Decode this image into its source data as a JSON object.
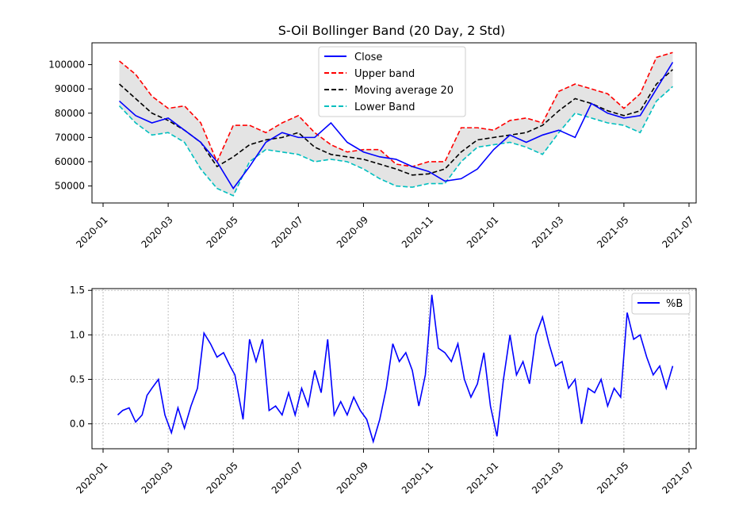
{
  "chart_data": [
    {
      "type": "line",
      "title": "S-Oil Bollinger Band (20 Day, 2 Std)",
      "xlabel": "",
      "ylabel": "",
      "x_ticks": [
        "2020-01",
        "2020-03",
        "2020-05",
        "2020-07",
        "2020-09",
        "2020-11",
        "2021-01",
        "2021-03",
        "2021-05",
        "2021-07"
      ],
      "y_ticks": [
        50000,
        60000,
        70000,
        80000,
        90000,
        100000
      ],
      "y_tick_labels": [
        "50000",
        "60000",
        "70000",
        "80000",
        "90000",
        "100000"
      ],
      "ylim": [
        43000,
        109000
      ],
      "grid": false,
      "legend_position": "top-center",
      "band_fill": "#d9d9d9",
      "x_month_index": [
        0.5,
        1,
        1.5,
        2,
        2.5,
        3,
        3.5,
        4,
        4.5,
        5,
        5.5,
        6,
        6.5,
        7,
        7.5,
        8,
        8.5,
        9,
        9.5,
        10,
        10.5,
        11,
        11.5,
        12,
        12.5,
        13,
        13.5,
        14,
        14.5,
        15,
        15.5,
        16,
        16.5,
        17,
        17.5
      ],
      "series": [
        {
          "name": "Close",
          "color": "#0000ff",
          "dash": "solid",
          "values": [
            85000,
            79000,
            76000,
            78000,
            73000,
            68000,
            60000,
            49000,
            58000,
            68000,
            72000,
            70000,
            70000,
            76000,
            68000,
            64000,
            62000,
            61000,
            58000,
            56000,
            52000,
            53000,
            57000,
            65000,
            71000,
            68000,
            71000,
            73000,
            70000,
            84000,
            80000,
            78000,
            79000,
            90000,
            101000
          ]
        },
        {
          "name": "Upper band",
          "color": "#ff0000",
          "dash": "dashed",
          "values": [
            101500,
            96000,
            87000,
            82000,
            83000,
            76000,
            60000,
            75000,
            75000,
            72000,
            76000,
            79000,
            72000,
            67000,
            64000,
            65000,
            65000,
            59000,
            58000,
            60000,
            60000,
            74000,
            74000,
            73000,
            77000,
            78000,
            76000,
            89000,
            92000,
            90000,
            88000,
            82000,
            88000,
            103000,
            105000
          ]
        },
        {
          "name": "Moving average 20",
          "color": "#000000",
          "dash": "dashed",
          "values": [
            92000,
            86000,
            80000,
            77000,
            73000,
            68000,
            58000,
            62000,
            67000,
            69000,
            70000,
            72000,
            66000,
            63000,
            62000,
            61000,
            59000,
            57000,
            54500,
            55000,
            57000,
            64000,
            69000,
            70000,
            71000,
            72000,
            75000,
            81000,
            86000,
            84000,
            81000,
            79000,
            81000,
            92000,
            98000
          ]
        },
        {
          "name": "Lower Band",
          "color": "#00bfbf",
          "dash": "dashed",
          "values": [
            83000,
            76000,
            71000,
            72000,
            68000,
            57000,
            49000,
            46000,
            60000,
            65000,
            64000,
            63000,
            60000,
            61000,
            60000,
            57000,
            53000,
            50000,
            49500,
            51000,
            51000,
            60000,
            66000,
            67000,
            68000,
            66000,
            63000,
            72000,
            80000,
            78000,
            76000,
            75000,
            72000,
            85000,
            91000
          ]
        }
      ]
    },
    {
      "type": "line",
      "title": "",
      "xlabel": "",
      "ylabel": "",
      "x_ticks": [
        "2020-01",
        "2020-03",
        "2020-05",
        "2020-07",
        "2020-09",
        "2020-11",
        "2021-01",
        "2021-03",
        "2021-05",
        "2021-07"
      ],
      "y_ticks": [
        0.0,
        0.5,
        1.0,
        1.5
      ],
      "y_tick_labels": [
        "0.0",
        "0.5",
        "1.0",
        "1.5"
      ],
      "ylim": [
        -0.28,
        1.52
      ],
      "grid": true,
      "legend_position": "top-right",
      "x_month_index": [
        0.45,
        0.6,
        0.8,
        1,
        1.2,
        1.35,
        1.5,
        1.7,
        1.9,
        2.1,
        2.3,
        2.5,
        2.7,
        2.9,
        3.1,
        3.3,
        3.5,
        3.7,
        3.9,
        4.05,
        4.3,
        4.5,
        4.7,
        4.9,
        5.1,
        5.3,
        5.5,
        5.7,
        5.9,
        6.1,
        6.3,
        6.5,
        6.7,
        6.9,
        7.1,
        7.3,
        7.5,
        7.7,
        7.9,
        8.1,
        8.3,
        8.5,
        8.7,
        8.9,
        9.1,
        9.3,
        9.5,
        9.7,
        9.9,
        10.1,
        10.3,
        10.5,
        10.7,
        10.9,
        11.1,
        11.3,
        11.5,
        11.7,
        11.9,
        12.1,
        12.3,
        12.5,
        12.7,
        12.9,
        13.1,
        13.3,
        13.5,
        13.7,
        13.9,
        14.1,
        14.3,
        14.5,
        14.7,
        14.9,
        15.1,
        15.3,
        15.5,
        15.7,
        15.9,
        16.1,
        16.3,
        16.5,
        16.7,
        16.9,
        17.1,
        17.3,
        17.5
      ],
      "series": [
        {
          "name": "%B",
          "color": "#0000ff",
          "dash": "solid",
          "values": [
            0.1,
            0.15,
            0.18,
            0.02,
            0.1,
            0.32,
            0.4,
            0.5,
            0.1,
            -0.1,
            0.18,
            -0.05,
            0.2,
            0.4,
            1.02,
            0.9,
            0.75,
            0.8,
            0.65,
            0.55,
            0.05,
            0.95,
            0.7,
            0.95,
            0.15,
            0.2,
            0.1,
            0.35,
            0.1,
            0.4,
            0.2,
            0.6,
            0.35,
            0.95,
            0.1,
            0.25,
            0.1,
            0.3,
            0.15,
            0.05,
            -0.2,
            0.05,
            0.4,
            0.9,
            0.7,
            0.8,
            0.6,
            0.2,
            0.55,
            1.45,
            0.85,
            0.8,
            0.7,
            0.9,
            0.5,
            0.3,
            0.45,
            0.8,
            0.2,
            -0.14,
            0.5,
            1.0,
            0.55,
            0.7,
            0.45,
            1.0,
            1.2,
            0.9,
            0.65,
            0.7,
            0.4,
            0.5,
            0.0,
            0.4,
            0.35,
            0.5,
            0.2,
            0.4,
            0.3,
            1.25,
            0.95,
            1.0,
            0.75,
            0.55,
            0.65,
            0.4,
            0.65
          ]
        }
      ]
    }
  ]
}
